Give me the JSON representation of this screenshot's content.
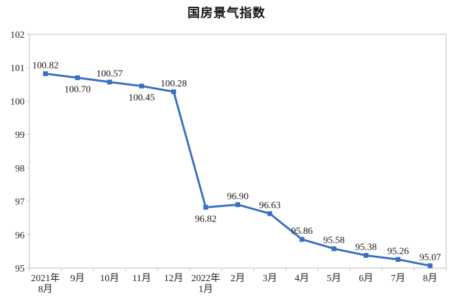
{
  "chart_data": {
    "type": "line",
    "title": "国房景气指数",
    "categories": [
      [
        "2021年",
        "8月"
      ],
      [
        "9月"
      ],
      [
        "10月"
      ],
      [
        "11月"
      ],
      [
        "12月"
      ],
      [
        "2022年",
        "1月"
      ],
      [
        "2月"
      ],
      [
        "3月"
      ],
      [
        "4月"
      ],
      [
        "5月"
      ],
      [
        "6月"
      ],
      [
        "7月"
      ],
      [
        "8月"
      ]
    ],
    "values": [
      100.82,
      100.7,
      100.57,
      100.45,
      100.28,
      96.82,
      96.9,
      96.63,
      95.86,
      95.58,
      95.38,
      95.26,
      95.07
    ],
    "data_labels": [
      "100.82",
      "100.70",
      "100.57",
      "100.45",
      "100.28",
      "96.82",
      "96.90",
      "96.63",
      "95.86",
      "95.58",
      "95.38",
      "95.26",
      "95.07"
    ],
    "label_positions": [
      "above",
      "below",
      "above",
      "below",
      "above",
      "below",
      "above",
      "above",
      "above",
      "above",
      "above",
      "above",
      "above"
    ],
    "xlabel": "",
    "ylabel": "",
    "ylim": [
      95,
      102
    ],
    "yticks": [
      95,
      96,
      97,
      98,
      99,
      100,
      101,
      102
    ],
    "grid": false,
    "legend": "none",
    "marker": "square",
    "colors": {
      "line": "#3a70c2",
      "marker": "#3a70c2",
      "axis": "#c9c9c9",
      "tick_text": "#1f1f26",
      "data_label_text": "#141414",
      "title_text": "#151515",
      "background": "#ffffff"
    }
  }
}
